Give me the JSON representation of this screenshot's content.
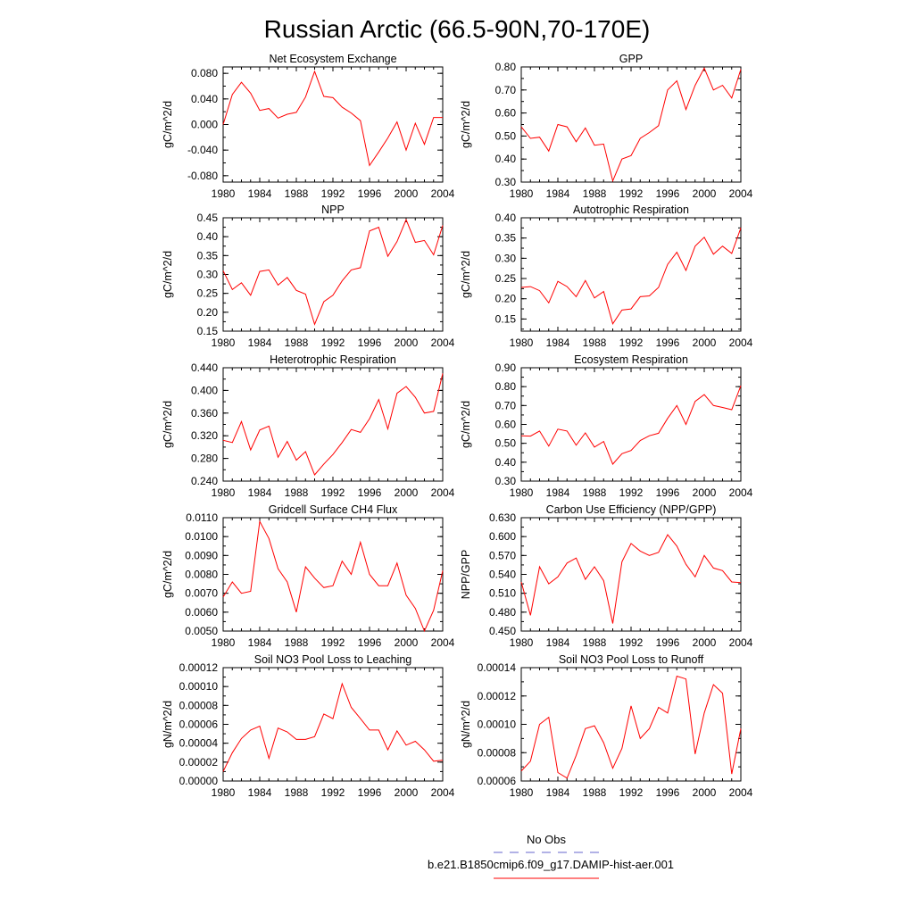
{
  "figure": {
    "title": "Russian Arctic (66.5-90N,70-170E)",
    "line_color": "#ff0000",
    "obs_color": "#6666cc"
  },
  "legend": {
    "placement": "bottom-center",
    "obs_label": "No Obs",
    "model_label": "b.e21.B1850cmip6.f09_g17.DAMIP-hist-aer.001"
  },
  "chart_data": [
    {
      "type": "line",
      "title": "Net Ecosystem Exchange",
      "ylabel": "gC/m^2/d",
      "xlim": [
        1980,
        2004
      ],
      "ylim": [
        -0.09,
        0.09
      ],
      "xticks": [
        "1980",
        "1984",
        "1988",
        "1992",
        "1996",
        "2000",
        "2004"
      ],
      "yticks": [
        "-0.080",
        "-0.040",
        "0.000",
        "0.040",
        "0.080"
      ],
      "x": [
        1980,
        1981,
        1982,
        1983,
        1984,
        1985,
        1986,
        1987,
        1988,
        1989,
        1990,
        1991,
        1992,
        1993,
        1994,
        1995,
        1996,
        1997,
        1998,
        1999,
        2000,
        2001,
        2002,
        2003,
        2004
      ],
      "values": [
        0.0,
        0.047,
        0.066,
        0.049,
        0.022,
        0.025,
        0.01,
        0.016,
        0.019,
        0.043,
        0.083,
        0.044,
        0.042,
        0.027,
        0.018,
        0.006,
        -0.064,
        -0.043,
        -0.021,
        0.004,
        -0.04,
        0.002,
        -0.031,
        0.011,
        0.011
      ]
    },
    {
      "type": "line",
      "title": "GPP",
      "ylabel": "gC/m^2/d",
      "xlim": [
        1980,
        2004
      ],
      "ylim": [
        0.3,
        0.8
      ],
      "xticks": [
        "1980",
        "1984",
        "1988",
        "1992",
        "1996",
        "2000",
        "2004"
      ],
      "yticks": [
        "0.30",
        "0.40",
        "0.50",
        "0.60",
        "0.70",
        "0.80"
      ],
      "x": [
        1980,
        1981,
        1982,
        1983,
        1984,
        1985,
        1986,
        1987,
        1988,
        1989,
        1990,
        1991,
        1992,
        1993,
        1994,
        1995,
        1996,
        1997,
        1998,
        1999,
        2000,
        2001,
        2002,
        2003,
        2004
      ],
      "values": [
        0.54,
        0.49,
        0.495,
        0.435,
        0.55,
        0.54,
        0.475,
        0.535,
        0.46,
        0.465,
        0.305,
        0.4,
        0.415,
        0.49,
        0.515,
        0.545,
        0.7,
        0.74,
        0.615,
        0.72,
        0.795,
        0.7,
        0.72,
        0.665,
        0.79
      ]
    },
    {
      "type": "line",
      "title": "NPP",
      "ylabel": "gC/m^2/d",
      "xlim": [
        1980,
        2004
      ],
      "ylim": [
        0.15,
        0.45
      ],
      "xticks": [
        "1980",
        "1984",
        "1988",
        "1992",
        "1996",
        "2000",
        "2004"
      ],
      "yticks": [
        "0.15",
        "0.20",
        "0.25",
        "0.30",
        "0.35",
        "0.40",
        "0.45"
      ],
      "x": [
        1980,
        1981,
        1982,
        1983,
        1984,
        1985,
        1986,
        1987,
        1988,
        1989,
        1990,
        1991,
        1992,
        1993,
        1994,
        1995,
        1996,
        1997,
        1998,
        1999,
        2000,
        2001,
        2002,
        2003,
        2004
      ],
      "values": [
        0.31,
        0.26,
        0.278,
        0.245,
        0.308,
        0.312,
        0.272,
        0.292,
        0.258,
        0.248,
        0.168,
        0.228,
        0.245,
        0.283,
        0.312,
        0.318,
        0.415,
        0.425,
        0.348,
        0.387,
        0.445,
        0.385,
        0.39,
        0.352,
        0.43
      ]
    },
    {
      "type": "line",
      "title": "Autotrophic Respiration",
      "ylabel": "gC/m^2/d",
      "xlim": [
        1980,
        2004
      ],
      "ylim": [
        0.12,
        0.4
      ],
      "xticks": [
        "1980",
        "1984",
        "1988",
        "1992",
        "1996",
        "2000",
        "2004"
      ],
      "yticks": [
        "0.15",
        "0.20",
        "0.25",
        "0.30",
        "0.35",
        "0.40"
      ],
      "x": [
        1980,
        1981,
        1982,
        1983,
        1984,
        1985,
        1986,
        1987,
        1988,
        1989,
        1990,
        1991,
        1992,
        1993,
        1994,
        1995,
        1996,
        1997,
        1998,
        1999,
        2000,
        2001,
        2002,
        2003,
        2004
      ],
      "values": [
        0.228,
        0.23,
        0.22,
        0.19,
        0.243,
        0.23,
        0.205,
        0.245,
        0.202,
        0.218,
        0.138,
        0.172,
        0.175,
        0.205,
        0.207,
        0.228,
        0.285,
        0.315,
        0.27,
        0.33,
        0.352,
        0.31,
        0.33,
        0.312,
        0.375
      ]
    },
    {
      "type": "line",
      "title": "Heterotrophic Respiration",
      "ylabel": "gC/m^2/d",
      "xlim": [
        1980,
        2004
      ],
      "ylim": [
        0.24,
        0.44
      ],
      "xticks": [
        "1980",
        "1984",
        "1988",
        "1992",
        "1996",
        "2000",
        "2004"
      ],
      "yticks": [
        "0.240",
        "0.280",
        "0.320",
        "0.360",
        "0.400",
        "0.440"
      ],
      "x": [
        1980,
        1981,
        1982,
        1983,
        1984,
        1985,
        1986,
        1987,
        1988,
        1989,
        1990,
        1991,
        1992,
        1993,
        1994,
        1995,
        1996,
        1997,
        1998,
        1999,
        2000,
        2001,
        2002,
        2003,
        2004
      ],
      "values": [
        0.312,
        0.308,
        0.345,
        0.295,
        0.33,
        0.337,
        0.282,
        0.31,
        0.277,
        0.292,
        0.251,
        0.27,
        0.287,
        0.308,
        0.331,
        0.326,
        0.35,
        0.384,
        0.332,
        0.395,
        0.407,
        0.388,
        0.36,
        0.363,
        0.43
      ]
    },
    {
      "type": "line",
      "title": "Ecosystem Respiration",
      "ylabel": "gC/m^2/d",
      "xlim": [
        1980,
        2004
      ],
      "ylim": [
        0.3,
        0.9
      ],
      "xticks": [
        "1980",
        "1984",
        "1988",
        "1992",
        "1996",
        "2000",
        "2004"
      ],
      "yticks": [
        "0.30",
        "0.40",
        "0.50",
        "0.60",
        "0.70",
        "0.80",
        "0.90"
      ],
      "x": [
        1980,
        1981,
        1982,
        1983,
        1984,
        1985,
        1986,
        1987,
        1988,
        1989,
        1990,
        1991,
        1992,
        1993,
        1994,
        1995,
        1996,
        1997,
        1998,
        1999,
        2000,
        2001,
        2002,
        2003,
        2004
      ],
      "values": [
        0.54,
        0.538,
        0.565,
        0.485,
        0.575,
        0.565,
        0.49,
        0.555,
        0.48,
        0.51,
        0.39,
        0.445,
        0.462,
        0.515,
        0.54,
        0.553,
        0.632,
        0.7,
        0.6,
        0.722,
        0.758,
        0.7,
        0.69,
        0.678,
        0.805
      ]
    },
    {
      "type": "line",
      "title": "Gridcell Surface CH4 Flux",
      "ylabel": "gC/m^2/d",
      "xlim": [
        1980,
        2004
      ],
      "ylim": [
        0.005,
        0.011
      ],
      "xticks": [
        "1980",
        "1984",
        "1988",
        "1992",
        "1996",
        "2000",
        "2004"
      ],
      "yticks": [
        "0.0050",
        "0.0060",
        "0.0070",
        "0.0080",
        "0.0090",
        "0.0100",
        "0.0110"
      ],
      "x": [
        1980,
        1981,
        1982,
        1983,
        1984,
        1985,
        1986,
        1987,
        1988,
        1989,
        1990,
        1991,
        1992,
        1993,
        1994,
        1995,
        1996,
        1997,
        1998,
        1999,
        2000,
        2001,
        2002,
        2003,
        2004
      ],
      "values": [
        0.0068,
        0.0076,
        0.007,
        0.0071,
        0.0108,
        0.0099,
        0.0083,
        0.0076,
        0.006,
        0.0084,
        0.0078,
        0.0073,
        0.0074,
        0.0087,
        0.008,
        0.0097,
        0.008,
        0.0074,
        0.0074,
        0.0086,
        0.0069,
        0.0062,
        0.005,
        0.0061,
        0.0082
      ]
    },
    {
      "type": "line",
      "title": "Carbon Use Efficiency (NPP/GPP)",
      "ylabel": "NPP/GPP",
      "xlim": [
        1980,
        2004
      ],
      "ylim": [
        0.45,
        0.63
      ],
      "xticks": [
        "1980",
        "1984",
        "1988",
        "1992",
        "1996",
        "2000",
        "2004"
      ],
      "yticks": [
        "0.450",
        "0.480",
        "0.510",
        "0.540",
        "0.570",
        "0.600",
        "0.630"
      ],
      "x": [
        1980,
        1981,
        1982,
        1983,
        1984,
        1985,
        1986,
        1987,
        1988,
        1989,
        1990,
        1991,
        1992,
        1993,
        1994,
        1995,
        1996,
        1997,
        1998,
        1999,
        2000,
        2001,
        2002,
        2003,
        2004
      ],
      "values": [
        0.528,
        0.475,
        0.552,
        0.525,
        0.536,
        0.558,
        0.566,
        0.532,
        0.552,
        0.53,
        0.462,
        0.56,
        0.589,
        0.577,
        0.57,
        0.575,
        0.603,
        0.585,
        0.556,
        0.536,
        0.57,
        0.55,
        0.546,
        0.528,
        0.527
      ]
    },
    {
      "type": "line",
      "title": "Soil NO3 Pool Loss to Leaching",
      "ylabel": "gN/m^2/d",
      "xlim": [
        1980,
        2004
      ],
      "ylim": [
        0.0,
        0.00012
      ],
      "xticks": [
        "1980",
        "1984",
        "1988",
        "1992",
        "1996",
        "2000",
        "2004"
      ],
      "yticks": [
        "0.00000",
        "0.00002",
        "0.00004",
        "0.00006",
        "0.00008",
        "0.00010",
        "0.00012"
      ],
      "x": [
        1980,
        1981,
        1982,
        1983,
        1984,
        1985,
        1986,
        1987,
        1988,
        1989,
        1990,
        1991,
        1992,
        1993,
        1994,
        1995,
        1996,
        1997,
        1998,
        1999,
        2000,
        2001,
        2002,
        2003,
        2004
      ],
      "values": [
        1e-05,
        3e-05,
        4.5e-05,
        5.4e-05,
        5.8e-05,
        2.4e-05,
        5.6e-05,
        5.2e-05,
        4.4e-05,
        4.4e-05,
        4.7e-05,
        7.1e-05,
        6.6e-05,
        0.000103,
        7.8e-05,
        6.6e-05,
        5.4e-05,
        5.4e-05,
        3.3e-05,
        5.3e-05,
        3.8e-05,
        4.2e-05,
        3.3e-05,
        2.1e-05,
        2.2e-05
      ]
    },
    {
      "type": "line",
      "title": "Soil NO3 Pool Loss to Runoff",
      "ylabel": "gN/m^2/d",
      "xlim": [
        1980,
        2004
      ],
      "ylim": [
        6e-05,
        0.00014
      ],
      "xticks": [
        "1980",
        "1984",
        "1988",
        "1992",
        "1996",
        "2000",
        "2004"
      ],
      "yticks": [
        "0.00006",
        "0.00008",
        "0.00010",
        "0.00012",
        "0.00014"
      ],
      "x": [
        1980,
        1981,
        1982,
        1983,
        1984,
        1985,
        1986,
        1987,
        1988,
        1989,
        1990,
        1991,
        1992,
        1993,
        1994,
        1995,
        1996,
        1997,
        1998,
        1999,
        2000,
        2001,
        2002,
        2003,
        2004
      ],
      "values": [
        6.7e-05,
        7.4e-05,
        0.0001,
        0.000105,
        6.6e-05,
        6.2e-05,
        7.8e-05,
        9.7e-05,
        9.9e-05,
        8.7e-05,
        6.9e-05,
        8.3e-05,
        0.000113,
        9e-05,
        9.7e-05,
        0.000112,
        0.000108,
        0.000134,
        0.000132,
        7.9e-05,
        0.000108,
        0.000128,
        0.000122,
        6.5e-05,
        9.7e-05
      ]
    }
  ]
}
